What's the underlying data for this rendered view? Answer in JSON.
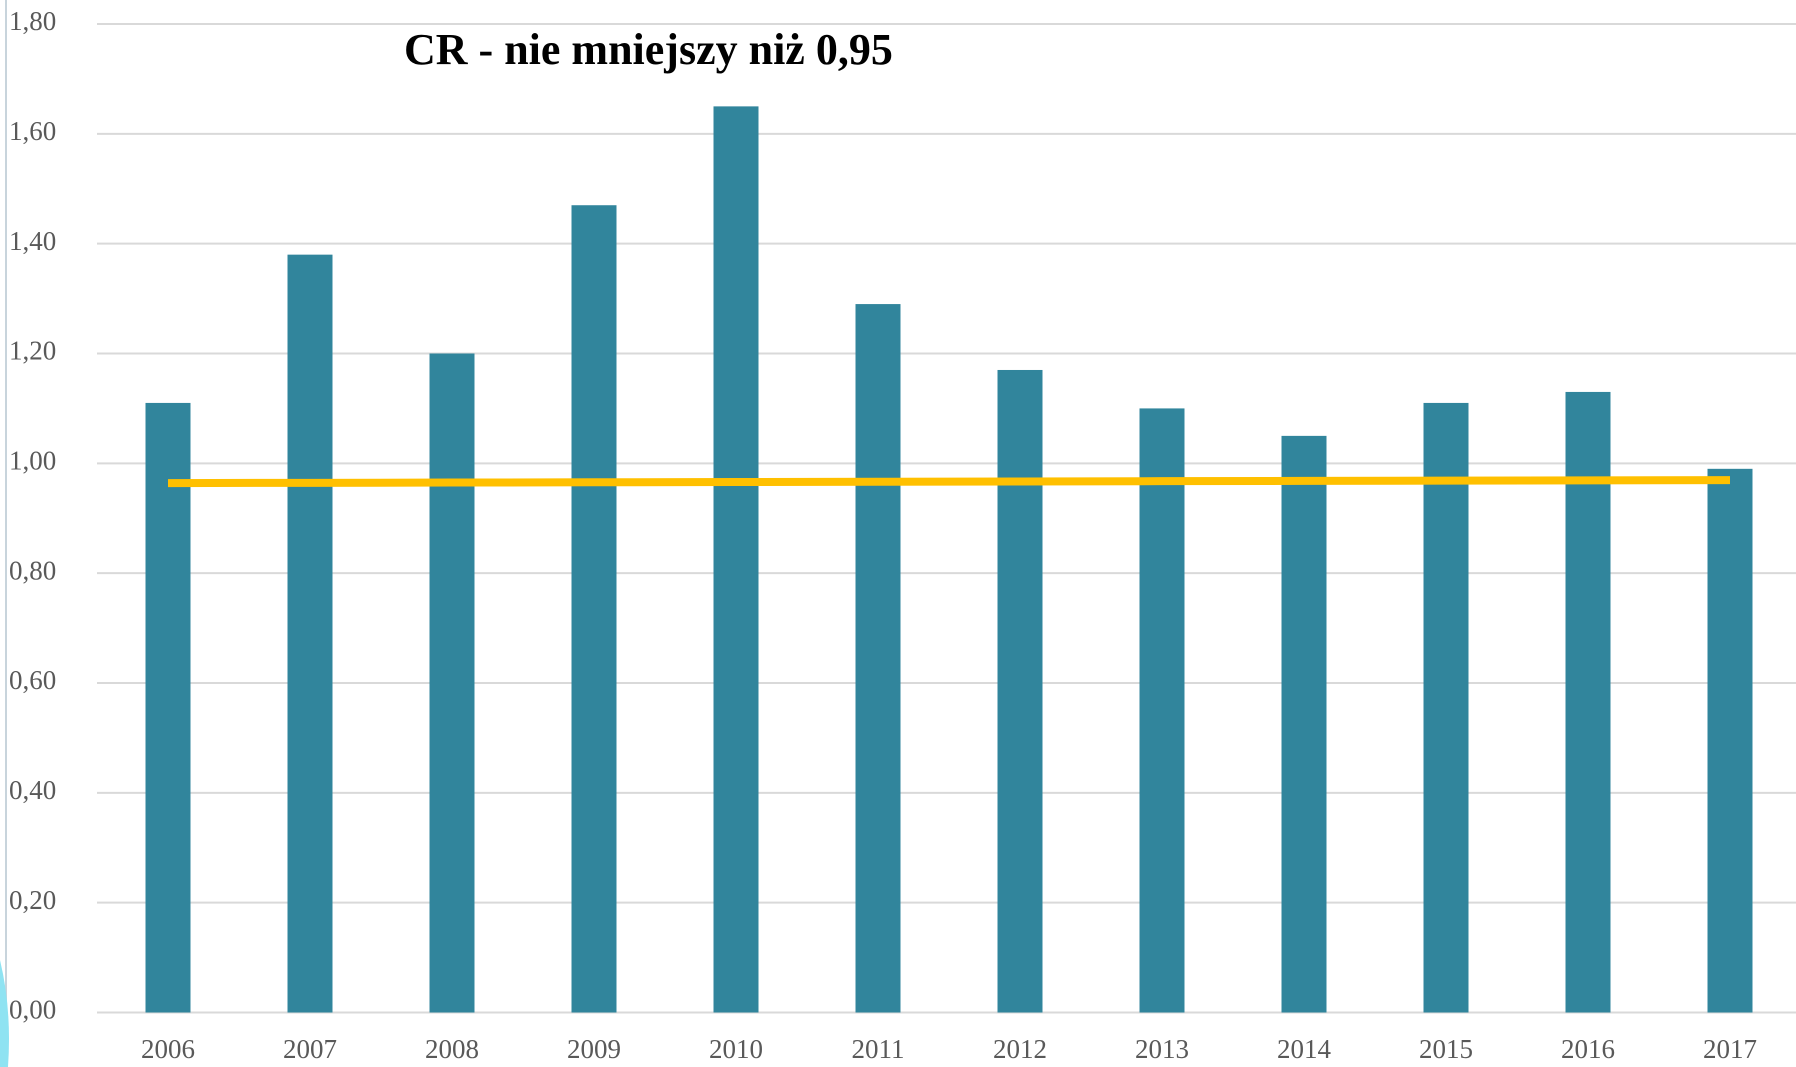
{
  "chart_data": {
    "type": "bar",
    "title": "CR - nie mniejszy niż 0,95",
    "categories": [
      "2006",
      "2007",
      "2008",
      "2009",
      "2010",
      "2011",
      "2012",
      "2013",
      "2014",
      "2015",
      "2016",
      "2017"
    ],
    "values": [
      1.11,
      1.38,
      1.2,
      1.47,
      1.65,
      1.29,
      1.17,
      1.1,
      1.05,
      1.11,
      1.13,
      0.99
    ],
    "color": "#31859c",
    "line": {
      "color": "#ffc000",
      "values": [
        0.964,
        0.9645,
        0.965,
        0.9655,
        0.966,
        0.9665,
        0.967,
        0.9675,
        0.968,
        0.9685,
        0.969,
        0.9695
      ]
    },
    "ylim": [
      0,
      1.8
    ],
    "yticks": [
      {
        "value": 0,
        "label": "0,00"
      },
      {
        "value": 0.2,
        "label": "0,20"
      },
      {
        "value": 0.4,
        "label": "0,40"
      },
      {
        "value": 0.6,
        "label": "0,60"
      },
      {
        "value": 0.8,
        "label": "0,80"
      },
      {
        "value": 1.0,
        "label": "1,00"
      },
      {
        "value": 1.2,
        "label": "1,20"
      },
      {
        "value": 1.4,
        "label": "1,40"
      },
      {
        "value": 1.6,
        "label": "1,60"
      },
      {
        "value": 1.8,
        "label": "1,80"
      }
    ],
    "grid": true
  }
}
